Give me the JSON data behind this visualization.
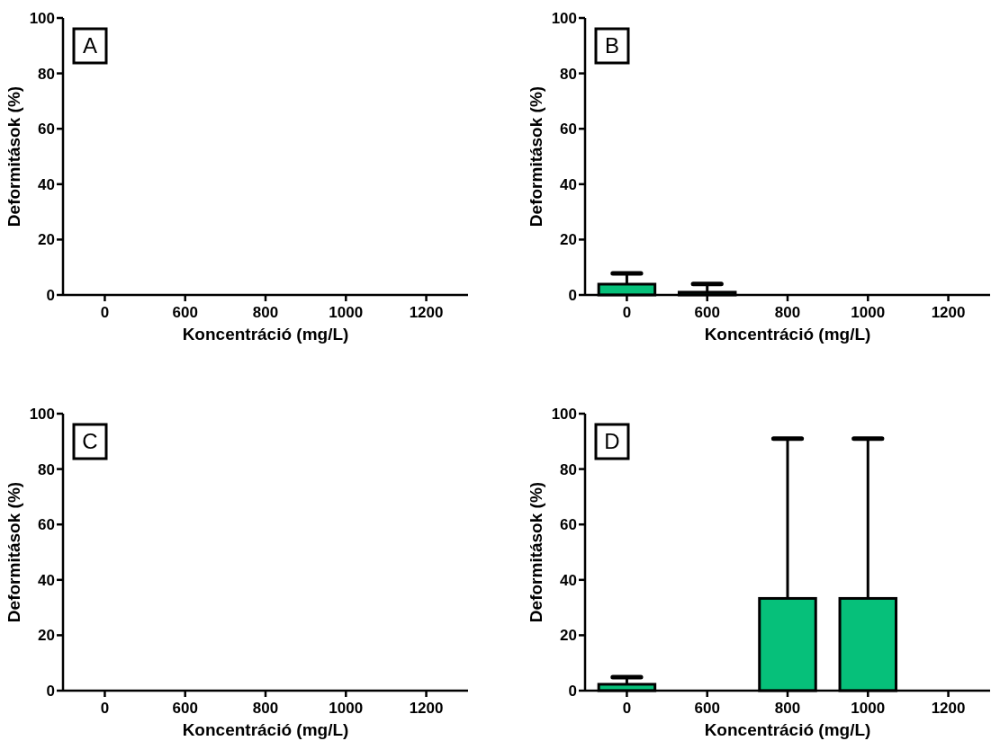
{
  "chart_data": [
    {
      "type": "bar",
      "annotations": [
        "A"
      ],
      "xlabel": "Koncentráció (mg/L)",
      "ylabel": "Deformitások (%)",
      "categories": [
        "0",
        "600",
        "800",
        "1000",
        "1200"
      ],
      "values": [
        0,
        0,
        0,
        0,
        0
      ],
      "color": "#06c07a",
      "ylim": [
        0,
        100
      ],
      "yticks": [
        0,
        20,
        40,
        60,
        80,
        100
      ],
      "grid": false
    },
    {
      "type": "bar",
      "annotations": [
        "B"
      ],
      "xlabel": "Koncentráció (mg/L)",
      "ylabel": "Deformitások (%)",
      "categories": [
        "0",
        "600",
        "800",
        "1000",
        "1200"
      ],
      "values": [
        3.9,
        1,
        0,
        0,
        0
      ],
      "errors": [
        [
          3.9,
          7.8
        ],
        [
          1,
          4
        ],
        null,
        null,
        null
      ],
      "color": "#06c07a",
      "ylim": [
        0,
        100
      ],
      "yticks": [
        0,
        20,
        40,
        60,
        80,
        100
      ],
      "grid": false
    },
    {
      "type": "bar",
      "annotations": [
        "C"
      ],
      "xlabel": "Koncentráció (mg/L)",
      "ylabel": "Deformitások (%)",
      "categories": [
        "0",
        "600",
        "800",
        "1000",
        "1200"
      ],
      "values": [
        0,
        0,
        0,
        0,
        0
      ],
      "color": "#06c07a",
      "ylim": [
        0,
        100
      ],
      "yticks": [
        0,
        20,
        40,
        60,
        80,
        100
      ],
      "grid": false
    },
    {
      "type": "bar",
      "annotations": [
        "D"
      ],
      "xlabel": "Koncentráció (mg/L)",
      "ylabel": "Deformitások (%)",
      "categories": [
        "0",
        "600",
        "800",
        "1000",
        "1200"
      ],
      "values": [
        2.3,
        0,
        33.3,
        33.3,
        0
      ],
      "errors": [
        [
          2.3,
          4.9
        ],
        null,
        [
          33.3,
          91
        ],
        [
          33.3,
          91
        ],
        null
      ],
      "color": "#06c07a",
      "ylim": [
        0,
        100
      ],
      "yticks": [
        0,
        20,
        40,
        60,
        80,
        100
      ],
      "grid": false
    }
  ]
}
